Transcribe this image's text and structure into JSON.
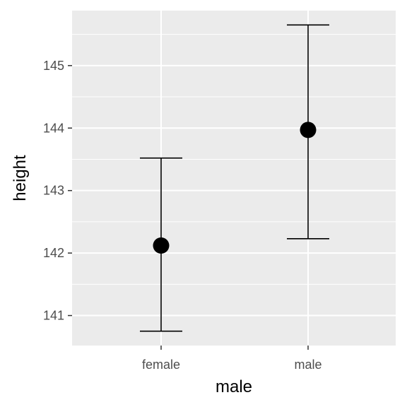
{
  "chart_data": {
    "type": "scatter",
    "subtype": "point-with-errorbars",
    "title": "",
    "xlabel": "male",
    "ylabel": "height",
    "categories": [
      "female",
      "male"
    ],
    "points": [
      {
        "category": "female",
        "mean": 142.12,
        "lower": 140.75,
        "upper": 143.52
      },
      {
        "category": "male",
        "mean": 143.97,
        "lower": 142.23,
        "upper": 145.65
      }
    ],
    "ylim": [
      140.52,
      145.88
    ],
    "yticks": [
      141,
      142,
      143,
      144,
      145
    ],
    "grid": true,
    "legend": "none",
    "colors": {
      "panel_background": "#ebebeb",
      "grid": "#ffffff",
      "mark": "#000000",
      "tick_text": "#4d4d4d",
      "tick_mark": "#333333"
    }
  }
}
